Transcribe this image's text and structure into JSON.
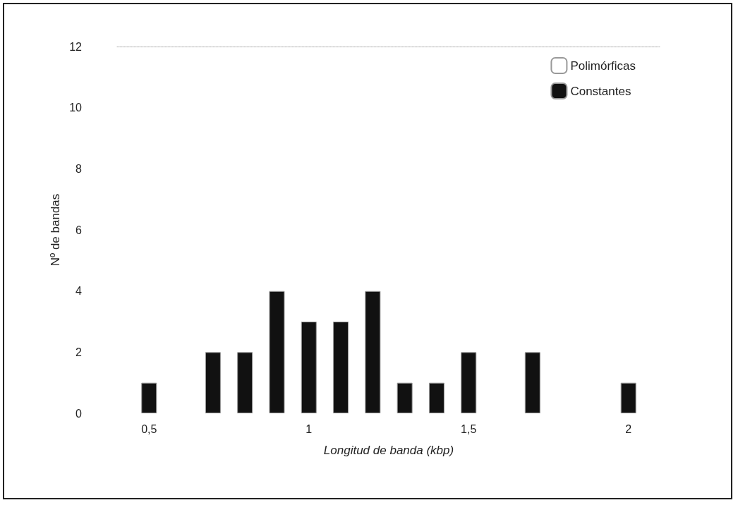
{
  "chart_data": {
    "type": "bar",
    "xlabel": "Longitud de banda (kbp)",
    "ylabel": "Nº de bandas",
    "x": [
      0.5,
      0.7,
      0.8,
      0.9,
      1.0,
      1.1,
      1.2,
      1.3,
      1.4,
      1.5,
      1.7,
      2.0
    ],
    "series": [
      {
        "name": "Polimórficas",
        "color": "#ffffff",
        "values": [
          null,
          null,
          null,
          null,
          null,
          null,
          null,
          null,
          null,
          null,
          null,
          null
        ]
      },
      {
        "name": "Constantes",
        "color": "#111111",
        "values": [
          1,
          2,
          2,
          4,
          3,
          3,
          4,
          1,
          1,
          2,
          2,
          1
        ]
      }
    ],
    "xlim": [
      0.4,
      2.1
    ],
    "xticks": [
      {
        "value": 0.5,
        "label": "0,5"
      },
      1,
      {
        "value": 1.5,
        "label": "1,5"
      },
      2
    ],
    "ylim": [
      0,
      12
    ],
    "yticks": [
      0,
      2,
      4,
      6,
      8,
      10,
      12
    ],
    "grid": false,
    "legend": "top right"
  }
}
